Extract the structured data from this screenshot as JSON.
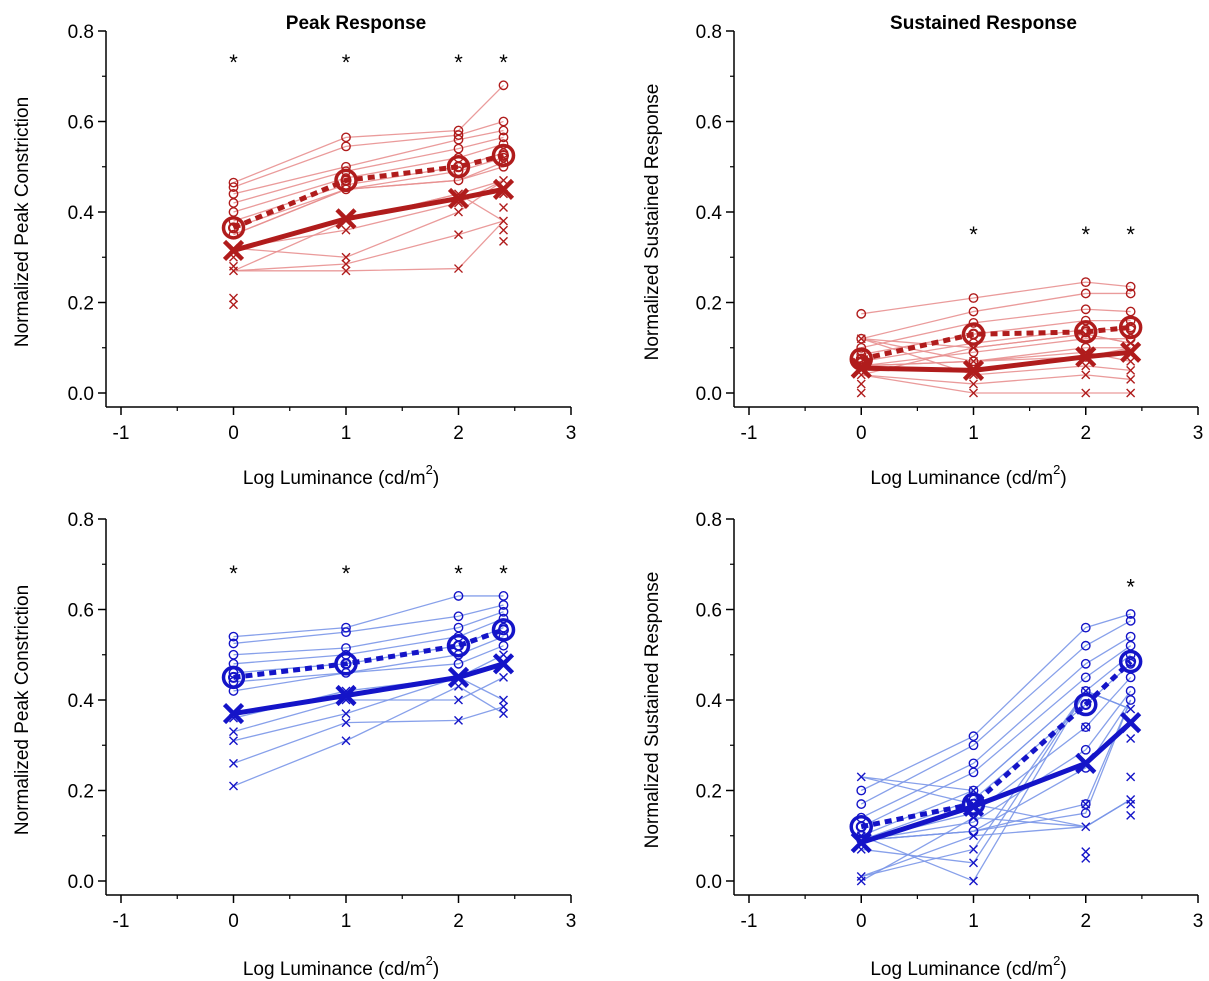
{
  "figure": {
    "xlabel": "Log Luminance (cd/m",
    "xlabel_superscript": "2",
    "xlabel_suffix": ")"
  },
  "chart_data": [
    {
      "id": "peak_red",
      "type": "line",
      "title": "Peak Response",
      "ylabel": "Normalized Peak Constriction",
      "xlim": [
        -1,
        3
      ],
      "ylim": [
        0,
        0.8
      ],
      "xticks": [
        "-1",
        "0",
        "1",
        "2",
        "3"
      ],
      "yticks": [
        "0.0",
        "0.2",
        "0.4",
        "0.6",
        "0.8"
      ],
      "color_main": "#b01c1c",
      "color_light": "#e89090",
      "x": [
        0,
        1,
        2,
        2.4
      ],
      "series": [
        {
          "marker": "circle",
          "style": "dashed",
          "values": [
            0.365,
            0.47,
            0.5,
            0.525
          ]
        },
        {
          "marker": "x",
          "style": "solid",
          "values": [
            0.315,
            0.385,
            0.43,
            0.45
          ]
        }
      ],
      "circle_points": [
        [
          0.465,
          0.455,
          0.44,
          0.42,
          0.4,
          0.38,
          0.365,
          0.35
        ],
        [
          0.565,
          0.545,
          0.5,
          0.49,
          0.475,
          0.46,
          0.45
        ],
        [
          0.58,
          0.57,
          0.56,
          0.54,
          0.52,
          0.5,
          0.49,
          0.47
        ],
        [
          0.68,
          0.6,
          0.58,
          0.565,
          0.55,
          0.53,
          0.52,
          0.51,
          0.5
        ]
      ],
      "x_points": [
        [
          0.32,
          0.3,
          0.28,
          0.27,
          0.21,
          0.195
        ],
        [
          0.38,
          0.36,
          0.3,
          0.285,
          0.27
        ],
        [
          0.44,
          0.42,
          0.4,
          0.35,
          0.275
        ],
        [
          0.47,
          0.44,
          0.41,
          0.38,
          0.36,
          0.335
        ]
      ],
      "stars_x": [
        0,
        1,
        2,
        2.4
      ],
      "star_y": 0.74,
      "star_label": "*"
    },
    {
      "id": "sustained_red",
      "type": "line",
      "title": "Sustained Response",
      "ylabel": "Normalized Sustained Response",
      "xlim": [
        -1,
        3
      ],
      "ylim": [
        0,
        0.8
      ],
      "xticks": [
        "-1",
        "0",
        "1",
        "2",
        "3"
      ],
      "yticks": [
        "0.0",
        "0.2",
        "0.4",
        "0.6",
        "0.8"
      ],
      "color_main": "#b01c1c",
      "color_light": "#e89090",
      "x": [
        0,
        1,
        2,
        2.4
      ],
      "series": [
        {
          "marker": "circle",
          "style": "dashed",
          "values": [
            0.075,
            0.13,
            0.135,
            0.145
          ]
        },
        {
          "marker": "x",
          "style": "solid",
          "values": [
            0.055,
            0.05,
            0.08,
            0.09
          ]
        }
      ],
      "circle_points": [
        [
          0.175,
          0.12,
          0.1,
          0.085,
          0.07,
          0.06
        ],
        [
          0.21,
          0.18,
          0.155,
          0.13,
          0.11,
          0.09,
          0.07
        ],
        [
          0.245,
          0.22,
          0.185,
          0.16,
          0.14,
          0.12,
          0.1,
          0.08
        ],
        [
          0.235,
          0.22,
          0.18,
          0.16,
          0.14,
          0.12,
          0.1
        ]
      ],
      "x_points": [
        [
          0.12,
          0.08,
          0.06,
          0.04,
          0.02,
          0.0
        ],
        [
          0.1,
          0.07,
          0.04,
          0.02,
          0.0
        ],
        [
          0.13,
          0.09,
          0.06,
          0.04,
          0.0
        ],
        [
          0.11,
          0.07,
          0.05,
          0.03,
          0.0
        ]
      ],
      "stars_x": [
        1,
        2,
        2.4
      ],
      "star_y": 0.36,
      "star_label": "*"
    },
    {
      "id": "peak_blue",
      "type": "line",
      "title": "",
      "ylabel": "Normalized Peak Constriction",
      "xlim": [
        -1,
        3
      ],
      "ylim": [
        0,
        0.8
      ],
      "xticks": [
        "-1",
        "0",
        "1",
        "2",
        "3"
      ],
      "yticks": [
        "0.0",
        "0.2",
        "0.4",
        "0.6",
        "0.8"
      ],
      "color_main": "#1414c8",
      "color_light": "#7a96e8",
      "x": [
        0,
        1,
        2,
        2.4
      ],
      "series": [
        {
          "marker": "circle",
          "style": "dashed",
          "values": [
            0.45,
            0.48,
            0.52,
            0.555
          ]
        },
        {
          "marker": "x",
          "style": "solid",
          "values": [
            0.37,
            0.41,
            0.45,
            0.48
          ]
        }
      ],
      "circle_points": [
        [
          0.54,
          0.525,
          0.5,
          0.48,
          0.46,
          0.44,
          0.42
        ],
        [
          0.56,
          0.55,
          0.515,
          0.5,
          0.48,
          0.46
        ],
        [
          0.63,
          0.585,
          0.56,
          0.54,
          0.52,
          0.5,
          0.48
        ],
        [
          0.63,
          0.61,
          0.595,
          0.58,
          0.56,
          0.54,
          0.52
        ]
      ],
      "x_points": [
        [
          0.36,
          0.33,
          0.31,
          0.26,
          0.21
        ],
        [
          0.42,
          0.4,
          0.37,
          0.35,
          0.31
        ],
        [
          0.45,
          0.43,
          0.4,
          0.355
        ],
        [
          0.5,
          0.45,
          0.4,
          0.385,
          0.37
        ]
      ],
      "stars_x": [
        0,
        1,
        2,
        2.4
      ],
      "star_y": 0.69,
      "star_label": "*"
    },
    {
      "id": "sustained_blue",
      "type": "line",
      "title": "",
      "ylabel": "Normalized Sustained Response",
      "xlim": [
        -1,
        3
      ],
      "ylim": [
        0,
        0.8
      ],
      "xticks": [
        "-1",
        "0",
        "1",
        "2",
        "3"
      ],
      "yticks": [
        "0.0",
        "0.2",
        "0.4",
        "0.6",
        "0.8"
      ],
      "color_main": "#1414c8",
      "color_light": "#7a96e8",
      "x": [
        0,
        1,
        2,
        2.4
      ],
      "series": [
        {
          "marker": "circle",
          "style": "dashed",
          "values": [
            0.12,
            0.17,
            0.39,
            0.485
          ]
        },
        {
          "marker": "x",
          "style": "solid",
          "values": [
            0.085,
            0.165,
            0.26,
            0.35
          ]
        }
      ],
      "circle_points": [
        [
          0.2,
          0.17,
          0.14,
          0.12,
          0.1,
          0.09
        ],
        [
          0.32,
          0.3,
          0.26,
          0.24,
          0.2,
          0.18,
          0.15,
          0.13,
          0.11
        ],
        [
          0.56,
          0.52,
          0.48,
          0.45,
          0.42,
          0.39,
          0.34,
          0.29,
          0.25,
          0.17,
          0.15
        ],
        [
          0.59,
          0.575,
          0.54,
          0.52,
          0.5,
          0.48,
          0.45,
          0.42,
          0.4
        ]
      ],
      "x_points": [
        [
          0.23,
          0.1,
          0.07,
          0.01,
          0.0
        ],
        [
          0.2,
          0.17,
          0.14,
          0.1,
          0.07,
          0.04,
          0.0
        ],
        [
          0.42,
          0.34,
          0.17,
          0.12,
          0.065,
          0.05
        ],
        [
          0.38,
          0.315,
          0.23,
          0.18,
          0.17,
          0.145
        ]
      ],
      "stars_x": [
        2.4
      ],
      "star_y": 0.66,
      "star_label": "*"
    }
  ]
}
